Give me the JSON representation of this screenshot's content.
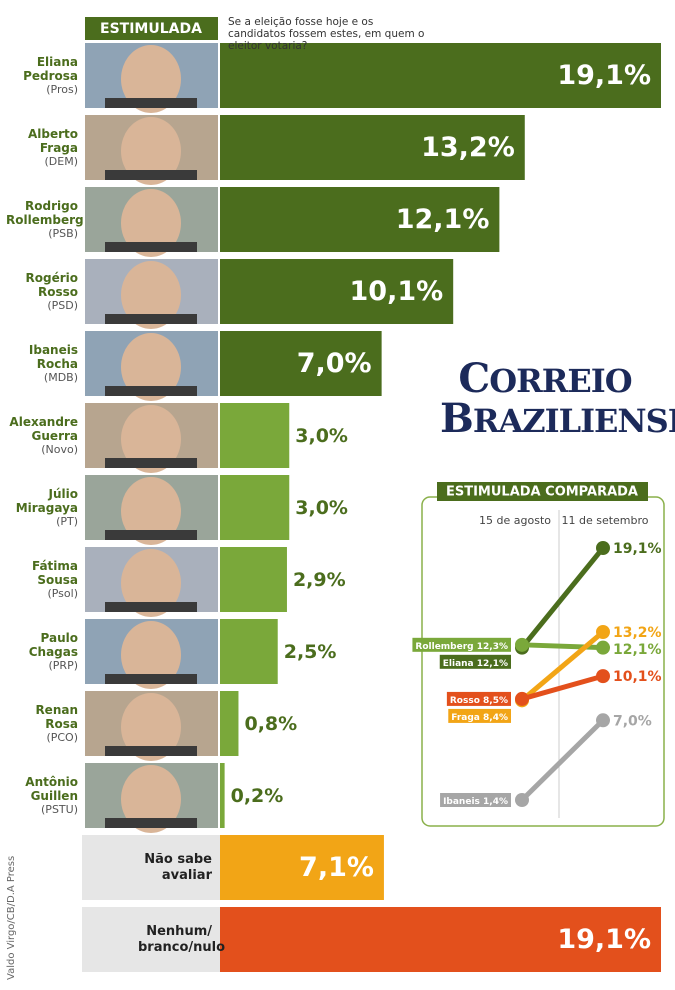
{
  "chart_data": [
    {
      "type": "bar",
      "orientation": "horizontal",
      "title": "ESTIMULADA",
      "subtitle": "Se a eleição fosse hoje e os candidatos fossem estes, em quem o eleitor votaria?",
      "categories": [
        "Eliana Pedrosa",
        "Alberto Fraga",
        "Rodrigo Rollemberg",
        "Rogério Rosso",
        "Ibaneis Rocha",
        "Alexandre Guerra",
        "Júlio Miragaya",
        "Fátima Sousa",
        "Paulo Chagas",
        "Renan Rosa",
        "Antônio Guillen",
        "Não sabe avaliar",
        "Nenhum/ branco/nulo"
      ],
      "parties": [
        "(Pros)",
        "(DEM)",
        "(PSB)",
        "(PSD)",
        "(MDB)",
        "(Novo)",
        "(PT)",
        "(Psol)",
        "(PRP)",
        "(PCO)",
        "(PSTU)",
        null,
        null
      ],
      "values": [
        19.1,
        13.2,
        12.1,
        10.1,
        7.0,
        3.0,
        3.0,
        2.9,
        2.5,
        0.8,
        0.2,
        7.1,
        19.1
      ],
      "value_labels": [
        "19,1%",
        "13,2%",
        "12,1%",
        "10,1%",
        "7,0%",
        "3,0%",
        "3,0%",
        "2,9%",
        "2,5%",
        "0,8%",
        "0,2%",
        "7,1%",
        "19,1%"
      ],
      "colors": [
        "#4b6d1d",
        "#4b6d1d",
        "#4b6d1d",
        "#4b6d1d",
        "#4b6d1d",
        "#7aa83a",
        "#7aa83a",
        "#7aa83a",
        "#7aa83a",
        "#7aa83a",
        "#7aa83a",
        "#f2a516",
        "#e3501c"
      ]
    },
    {
      "type": "slope",
      "title": "ESTIMULADA COMPARADA",
      "x": [
        "15 de agosto",
        "11 de setembro"
      ],
      "series": [
        {
          "name": "Eliana",
          "color": "#4b6d1d",
          "values": [
            12.1,
            19.1
          ],
          "value_labels": [
            "12,1%",
            "19,1%"
          ]
        },
        {
          "name": "Rollemberg",
          "color": "#7aa83a",
          "values": [
            12.3,
            12.1
          ],
          "value_labels": [
            "12,3%",
            "12,1%"
          ]
        },
        {
          "name": "Fraga",
          "color": "#f2a516",
          "values": [
            8.4,
            13.2
          ],
          "value_labels": [
            "8,4%",
            "13,2%"
          ]
        },
        {
          "name": "Rosso",
          "color": "#e3501c",
          "values": [
            8.5,
            10.1
          ],
          "value_labels": [
            "8,5%",
            "10,1%"
          ]
        },
        {
          "name": "Ibaneis",
          "color": "#a6a6a6",
          "values": [
            1.4,
            7.0
          ],
          "value_labels": [
            "1,4%",
            "7,0%"
          ]
        }
      ]
    }
  ],
  "brand": [
    "CORREIO",
    "BRAZILIENSE"
  ],
  "credit": "Valdo Virgo/CB/D.A Press"
}
